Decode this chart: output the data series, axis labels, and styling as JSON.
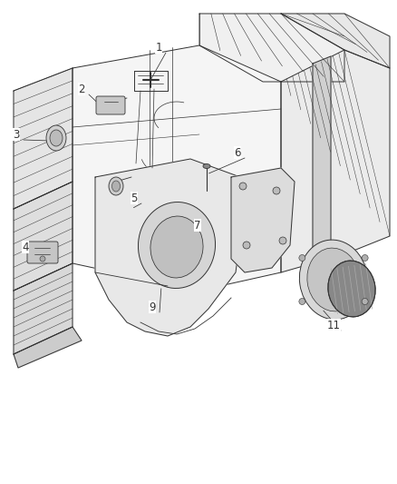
{
  "bg_color": "#ffffff",
  "line_color": "#333333",
  "label_color": "#333333",
  "figsize": [
    4.38,
    5.33
  ],
  "dpi": 100,
  "lw": 0.7,
  "labels_info": {
    "1": [
      175,
      52,
      165,
      90
    ],
    "2": [
      90,
      98,
      120,
      125
    ],
    "3": [
      18,
      148,
      55,
      155
    ],
    "4": [
      28,
      272,
      55,
      280
    ],
    "5": [
      148,
      218,
      145,
      230
    ],
    "6": [
      262,
      168,
      228,
      192
    ],
    "7": [
      218,
      248,
      215,
      260
    ],
    "9": [
      168,
      338,
      178,
      315
    ],
    "11": [
      368,
      358,
      355,
      340
    ]
  }
}
